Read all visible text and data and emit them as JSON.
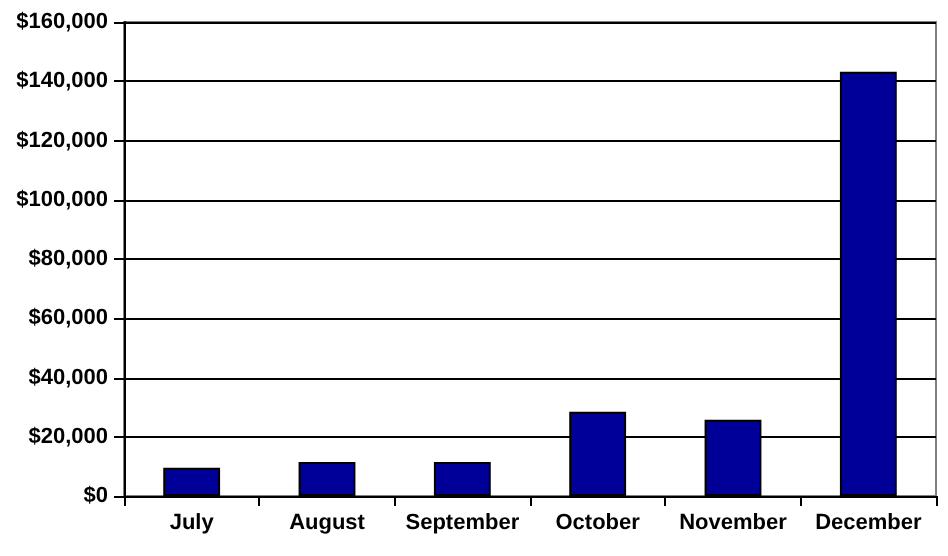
{
  "chart_data": {
    "type": "bar",
    "categories": [
      "July",
      "August",
      "September",
      "October",
      "November",
      "December"
    ],
    "values": [
      9500,
      11500,
      11500,
      28400,
      25700,
      143200
    ],
    "color": "#000099",
    "ylim": [
      0,
      160000
    ],
    "yticks": [
      {
        "value": 0,
        "label": "$0"
      },
      {
        "value": 20000,
        "label": "$20,000"
      },
      {
        "value": 40000,
        "label": "$40,000"
      },
      {
        "value": 60000,
        "label": "$60,000"
      },
      {
        "value": 80000,
        "label": "$80,000"
      },
      {
        "value": 100000,
        "label": "$100,000"
      },
      {
        "value": 120000,
        "label": "$120,000"
      },
      {
        "value": 140000,
        "label": "$140,000"
      },
      {
        "value": 160000,
        "label": "$160,000"
      }
    ],
    "grid": "y"
  }
}
